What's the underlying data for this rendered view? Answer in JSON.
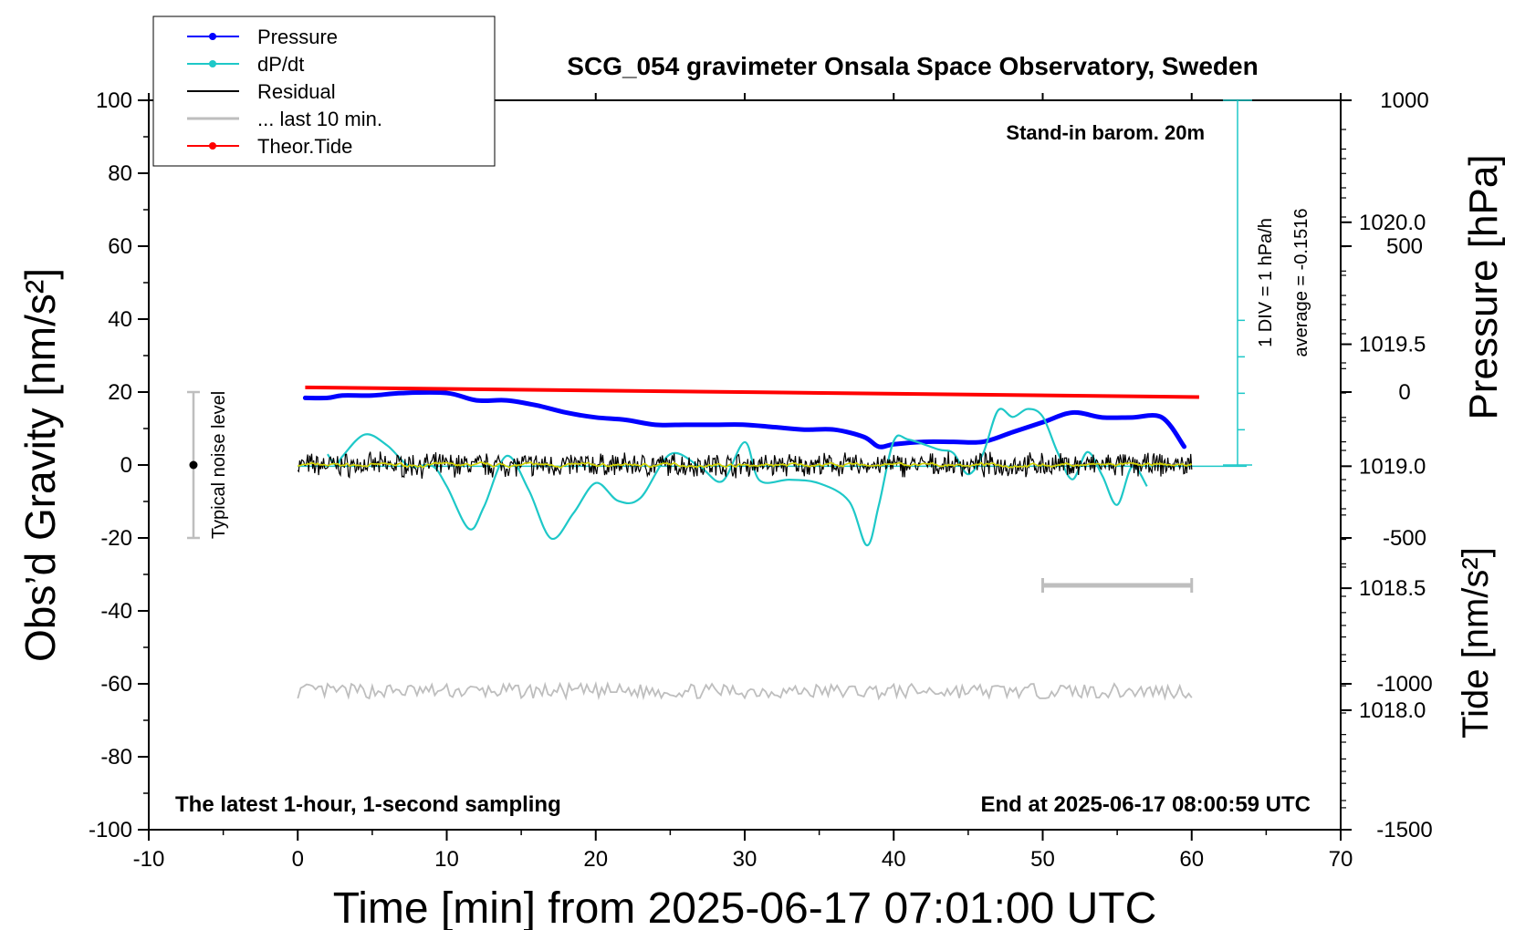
{
  "chart_data": {
    "type": "line",
    "title": "SCG_054 gravimeter Onsala Space Observatory, Sweden",
    "subtitle_left": "The latest 1-hour, 1-second sampling",
    "subtitle_right": "End at 2025-06-17 08:00:59 UTC",
    "annotation_barometer": "Stand-in barom. 20m",
    "xlabel": "Time [min] from 2025-06-17 07:01:00 UTC",
    "ylabel_left": "Obs’d Gravity [nm/s²]",
    "ylabel_right_top": "Pressure [hPa]",
    "ylabel_right_bottom": "Tide [nm/s²]",
    "noise_label": "Typical noise level",
    "dpdt_scale_label": "1 DIV = 1 hPa/h",
    "dpdt_average_label": "average = -0.1516",
    "xlim": [
      -10,
      70
    ],
    "ylim_left": [
      -100,
      100
    ],
    "xticks": [
      "-10",
      "0",
      "10",
      "20",
      "30",
      "40",
      "50",
      "60",
      "70"
    ],
    "yticks_left": [
      "100",
      "80",
      "60",
      "40",
      "20",
      "0",
      "-20",
      "-40",
      "-60",
      "-80",
      "-100"
    ],
    "yticks_pressure": [
      "1020.0",
      "1019.5",
      "1019.0",
      "1018.5",
      "1018.0"
    ],
    "yticks_tide": [
      "1000",
      "500",
      "0",
      "-500",
      "-1000",
      "-1500"
    ],
    "legend": [
      {
        "label": "Pressure",
        "color": "#0000ff",
        "marker": true
      },
      {
        "label": "dP/dt",
        "color": "#1ec8c8",
        "marker": true
      },
      {
        "label": "Residual",
        "color": "#000000",
        "marker": false
      },
      {
        "label": "... last 10 min.",
        "color": "#bebebe",
        "marker": false
      },
      {
        "label": "Theor.Tide",
        "color": "#ff0000",
        "marker": true
      }
    ],
    "series": [
      {
        "name": "Pressure",
        "axis": "pressure_hPa",
        "color": "#0000ff",
        "x": [
          0.5,
          2,
          3,
          5,
          7,
          10,
          12,
          14,
          16,
          18,
          20,
          22,
          24,
          26,
          28,
          30,
          32,
          34,
          36,
          38,
          39,
          40,
          42,
          44,
          46,
          48,
          50,
          52,
          54,
          56,
          58,
          59.5
        ],
        "y": [
          1019.28,
          1019.28,
          1019.29,
          1019.29,
          1019.3,
          1019.3,
          1019.27,
          1019.27,
          1019.25,
          1019.22,
          1019.2,
          1019.19,
          1019.17,
          1019.17,
          1019.17,
          1019.17,
          1019.16,
          1019.15,
          1019.15,
          1019.12,
          1019.08,
          1019.09,
          1019.1,
          1019.1,
          1019.1,
          1019.14,
          1019.18,
          1019.22,
          1019.2,
          1019.2,
          1019.2,
          1019.08
        ]
      },
      {
        "name": "dP/dt",
        "axis": "dpdt_hPa_per_h",
        "color": "#1ec8c8",
        "x": [
          2,
          2.6,
          3,
          4.5,
          6,
          7.5,
          9,
          10,
          11.5,
          12.5,
          14,
          15.5,
          17,
          18.5,
          20,
          21.5,
          23,
          25,
          27,
          28.5,
          30,
          31,
          33,
          35,
          37,
          38.2,
          39,
          40,
          41,
          43,
          44,
          45,
          46,
          47,
          48,
          49,
          50,
          51,
          52,
          53,
          54,
          55,
          56,
          57
        ],
        "y": [
          0.33,
          0.01,
          0.27,
          0.87,
          0.57,
          0.0,
          0.02,
          -0.55,
          -1.72,
          -1.11,
          0.28,
          -0.65,
          -1.98,
          -1.29,
          -0.46,
          -0.95,
          -0.87,
          0.33,
          -0.02,
          -0.41,
          0.66,
          -0.39,
          -0.37,
          -0.47,
          -0.96,
          -2.17,
          -1.07,
          0.69,
          0.73,
          0.46,
          0.36,
          -0.22,
          0.35,
          1.53,
          1.35,
          1.57,
          1.36,
          0.38,
          -0.36,
          0.39,
          -0.26,
          -1.06,
          -0.01,
          -0.55
        ]
      },
      {
        "name": "Residual",
        "axis": "gravity_nm_s2",
        "color": "#000000",
        "x_range": [
          0,
          60
        ],
        "mean": 0.0,
        "amplitude": 2.5
      },
      {
        "name": "... last 10 min.",
        "axis": "gravity_nm_s2",
        "color": "#bebebe",
        "x_range": [
          0,
          60
        ],
        "mean": -62,
        "amplitude": 2.0
      },
      {
        "name": "Theor.Tide",
        "axis": "tide_nm_s2",
        "color": "#ff0000",
        "x": [
          0.5,
          60.5
        ],
        "y": [
          16,
          -17
        ]
      }
    ],
    "pressure_axis": {
      "ylim": [
        1017.51,
        1020.5
      ]
    },
    "tide_axis": {
      "ylim": [
        -1500,
        1000
      ]
    },
    "dpdt_axis": {
      "zero_at_pressure": 1019.0,
      "hPa_per_div": 1
    },
    "noise_bar": {
      "x": -7,
      "center": 0,
      "half_range": 20
    },
    "ten_min_marker": {
      "x_range": [
        50,
        60
      ],
      "y": -33
    }
  }
}
